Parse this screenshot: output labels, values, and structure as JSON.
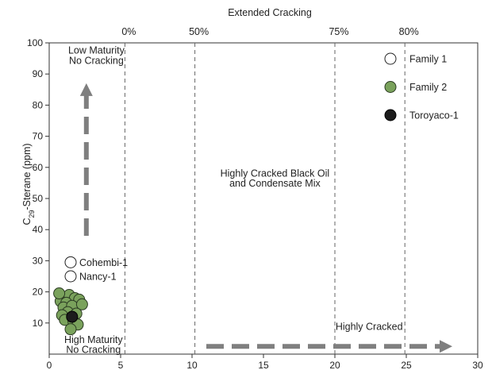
{
  "chart_data": {
    "type": "scatter",
    "title": "Extended Cracking",
    "xlabel": "",
    "ylabel": "C29-Sterane (ppm)",
    "xlim": [
      0,
      30
    ],
    "ylim": [
      0,
      100
    ],
    "x_ticks": [
      0,
      5,
      10,
      15,
      20,
      25,
      30
    ],
    "y_ticks": [
      10,
      20,
      30,
      40,
      50,
      60,
      70,
      80,
      90,
      100
    ],
    "grid": false,
    "legend_position": "top-right",
    "cracking_lines": [
      {
        "x": 5.3,
        "label": "0%"
      },
      {
        "x": 10.2,
        "label": "50%"
      },
      {
        "x": 20.0,
        "label": "75%"
      },
      {
        "x": 24.9,
        "label": "80%"
      }
    ],
    "series": [
      {
        "name": "Family 1",
        "color": "#ffffff",
        "stroke": "#222222",
        "points": [
          {
            "x": 1.5,
            "y": 29.5,
            "label": "Cohembi-1"
          },
          {
            "x": 1.5,
            "y": 25.0,
            "label": "Nancy-1"
          }
        ]
      },
      {
        "name": "Family 2",
        "color": "#7aa25c",
        "stroke": "#2a3a22",
        "points": [
          {
            "x": 0.9,
            "y": 18.5
          },
          {
            "x": 1.4,
            "y": 19.0
          },
          {
            "x": 1.8,
            "y": 18.0
          },
          {
            "x": 0.8,
            "y": 17.0
          },
          {
            "x": 1.2,
            "y": 16.5
          },
          {
            "x": 2.1,
            "y": 17.5
          },
          {
            "x": 1.0,
            "y": 15.0
          },
          {
            "x": 1.6,
            "y": 15.5
          },
          {
            "x": 2.3,
            "y": 16.0
          },
          {
            "x": 1.3,
            "y": 13.5
          },
          {
            "x": 0.9,
            "y": 12.5
          },
          {
            "x": 1.9,
            "y": 13.0
          },
          {
            "x": 1.1,
            "y": 11.0
          },
          {
            "x": 1.7,
            "y": 10.5
          },
          {
            "x": 2.0,
            "y": 9.5
          },
          {
            "x": 1.5,
            "y": 8.0
          },
          {
            "x": 0.7,
            "y": 19.5
          }
        ]
      },
      {
        "name": "Toroyaco-1",
        "color": "#1c1c1c",
        "stroke": "#000000",
        "points": [
          {
            "x": 1.6,
            "y": 12.0
          }
        ]
      }
    ],
    "annotations": [
      {
        "text": "Low Maturity",
        "x": 3.3,
        "y": 96.5
      },
      {
        "text": "No Cracking",
        "x": 3.3,
        "y": 93.2
      },
      {
        "text": "Highly Cracked Black Oil",
        "x": 15.8,
        "y": 57.0
      },
      {
        "text": "and Condensate Mix",
        "x": 15.8,
        "y": 53.8
      },
      {
        "text": "Highly Cracked",
        "x": 22.4,
        "y": 7.8
      },
      {
        "text": "High Maturity",
        "x": 3.1,
        "y": 3.6
      },
      {
        "text": "No Cracking",
        "x": 3.1,
        "y": 0.4
      }
    ],
    "arrows": [
      {
        "from": [
          2.6,
          38.0
        ],
        "to": [
          2.6,
          86.0
        ],
        "direction": "up"
      },
      {
        "from": [
          11.0,
          2.5
        ],
        "to": [
          28.0,
          2.5
        ],
        "direction": "right"
      }
    ]
  }
}
